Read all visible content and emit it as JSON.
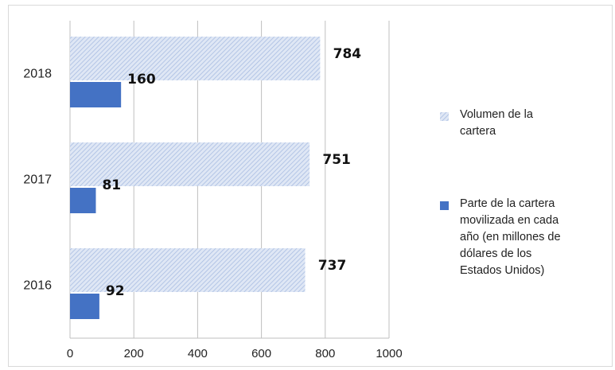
{
  "chart_data": {
    "type": "bar",
    "orientation": "horizontal",
    "categories": [
      "2016",
      "2017",
      "2018"
    ],
    "series": [
      {
        "name": "Volumen de la cartera",
        "values": [
          737,
          751,
          784
        ],
        "color": "#c9d6ee",
        "pattern": "diagonal-hatch"
      },
      {
        "name": "Parte de la cartera movilizada en cada año (en millones de dólares de los Estados Unidos)",
        "values": [
          92,
          81,
          160
        ],
        "color": "#4472c4",
        "pattern": "solid"
      }
    ],
    "xlim": [
      0,
      1000
    ],
    "xticks": [
      "0",
      "200",
      "400",
      "600",
      "800",
      "1000"
    ],
    "grid": "vertical",
    "legend_position": "right",
    "legend_lines": [
      [
        "Volumen de la",
        "cartera"
      ],
      [
        "Parte de la cartera",
        "movilizada en cada",
        "año (en millones de",
        "dólares de los",
        "Estados Unidos)"
      ]
    ]
  }
}
